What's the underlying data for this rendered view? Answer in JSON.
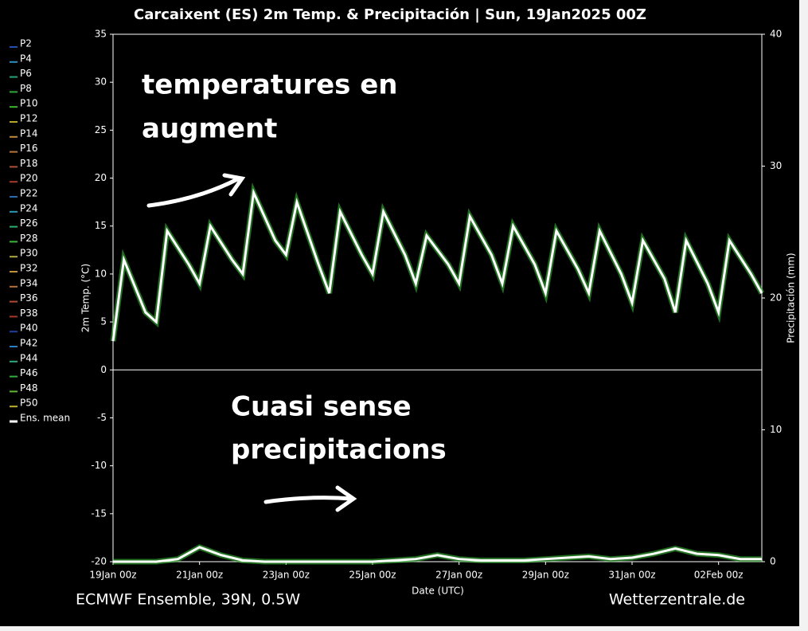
{
  "chart_data": {
    "type": "line",
    "title": "Carcaixent  (ES)  2m Temp. & Precipitación | Sun, 19Jan2025 00Z",
    "ylabel": "2m Temp. (°C)",
    "y2label": "Precipitación (mm)",
    "xlabel": "Date (UTC)",
    "footer_left": "ECMWF Ensemble, 39N, 0.5W",
    "footer_right": "Wetterzentrale.de",
    "annotations": [
      [
        "temperatures en",
        "augment"
      ],
      [
        "Cuasi sense",
        "precipitacions"
      ]
    ],
    "xlim": [
      0,
      360
    ],
    "xticks": [
      {
        "value": 0,
        "label": "19Jan 00z"
      },
      {
        "value": 48,
        "label": "21Jan 00z"
      },
      {
        "value": 96,
        "label": "23Jan 00z"
      },
      {
        "value": 144,
        "label": "25Jan 00z"
      },
      {
        "value": 192,
        "label": "27Jan 00z"
      },
      {
        "value": 240,
        "label": "29Jan 00z"
      },
      {
        "value": 288,
        "label": "31Jan 00z"
      },
      {
        "value": 336,
        "label": "02Feb 00z"
      }
    ],
    "ylim": [
      -20,
      35
    ],
    "yticks": [
      -20,
      -15,
      -10,
      -5,
      0,
      5,
      10,
      15,
      20,
      25,
      30,
      35
    ],
    "y2lim": [
      0,
      40
    ],
    "y2ticks": [
      0,
      10,
      20,
      30,
      40
    ],
    "members": [
      {
        "name": "P2",
        "color": "#2350b0"
      },
      {
        "name": "P4",
        "color": "#2a8fc0"
      },
      {
        "name": "P6",
        "color": "#25a37a"
      },
      {
        "name": "P8",
        "color": "#2eaa3a"
      },
      {
        "name": "P10",
        "color": "#3cb82e"
      },
      {
        "name": "P12",
        "color": "#b5a52a"
      },
      {
        "name": "P14",
        "color": "#c08a3a"
      },
      {
        "name": "P16",
        "color": "#b8743a"
      },
      {
        "name": "P18",
        "color": "#b0503a"
      },
      {
        "name": "P20",
        "color": "#a83a2a"
      },
      {
        "name": "P22",
        "color": "#2a6ab0"
      },
      {
        "name": "P24",
        "color": "#2a9ab8"
      },
      {
        "name": "P26",
        "color": "#2ab06a"
      },
      {
        "name": "P28",
        "color": "#3ab83a"
      },
      {
        "name": "P30",
        "color": "#b0a840"
      },
      {
        "name": "P32",
        "color": "#c0903a"
      },
      {
        "name": "P34",
        "color": "#b8703a"
      },
      {
        "name": "P36",
        "color": "#b04a30"
      },
      {
        "name": "P38",
        "color": "#a83828"
      },
      {
        "name": "P40",
        "color": "#2040a0"
      },
      {
        "name": "P42",
        "color": "#2a80c0"
      },
      {
        "name": "P44",
        "color": "#30a880"
      },
      {
        "name": "P46",
        "color": "#30b040"
      },
      {
        "name": "P48",
        "color": "#60b830"
      },
      {
        "name": "P50",
        "color": "#c0b030"
      }
    ],
    "series": [
      {
        "name": "Ens. mean",
        "color": "#ffffff",
        "x": [
          0,
          6,
          18,
          24,
          30,
          42,
          48,
          54,
          66,
          72,
          78,
          90,
          96,
          102,
          114,
          120,
          126,
          138,
          144,
          150,
          162,
          168,
          174,
          186,
          192,
          198,
          210,
          216,
          222,
          234,
          240,
          246,
          258,
          264,
          270,
          282,
          288,
          294,
          306,
          312,
          318,
          330,
          336,
          342,
          354,
          360
        ],
        "values": [
          3,
          11.5,
          6,
          5,
          14.5,
          11,
          9,
          15,
          11.5,
          10,
          18.5,
          13.5,
          12,
          17.5,
          11,
          8,
          16.5,
          12,
          10,
          16.5,
          12,
          9,
          14,
          11,
          9,
          16,
          12,
          9,
          15,
          11,
          8,
          14.5,
          10.5,
          8,
          14.5,
          10,
          7,
          13.5,
          9.5,
          6,
          13.5,
          9,
          6,
          13.5,
          10,
          8
        ]
      },
      {
        "name": "Ens. mean",
        "color": "#ffffff",
        "axis": "y2",
        "x": [
          0,
          12,
          24,
          36,
          48,
          60,
          72,
          84,
          96,
          108,
          120,
          132,
          144,
          156,
          168,
          180,
          192,
          204,
          216,
          228,
          240,
          252,
          264,
          276,
          288,
          300,
          312,
          324,
          336,
          348,
          360
        ],
        "values": [
          0,
          0,
          0,
          0.2,
          1.1,
          0.5,
          0.1,
          0,
          0,
          0,
          0,
          0,
          0,
          0.1,
          0.2,
          0.5,
          0.2,
          0.1,
          0.1,
          0.1,
          0.2,
          0.3,
          0.4,
          0.2,
          0.3,
          0.6,
          1.0,
          0.6,
          0.5,
          0.2,
          0.2
        ]
      }
    ]
  }
}
